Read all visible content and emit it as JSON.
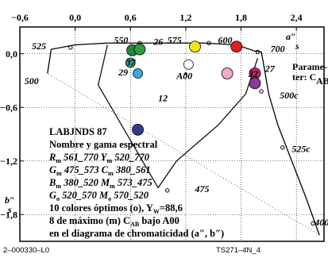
{
  "chart_data": {
    "type": "scatter",
    "xlim": [
      -0.6,
      2.7
    ],
    "ylim": [
      -2.1,
      0.3
    ],
    "x_ticks": [
      -0.6,
      0.0,
      0.6,
      1.2,
      1.8,
      2.4
    ],
    "x_tick_labels": [
      "−0,6",
      "0,0",
      "0,6",
      "1,2",
      "1,8",
      "2,4"
    ],
    "y_ticks": [
      0.0,
      -0.6,
      -1.2,
      -1.8
    ],
    "y_tick_labels": [
      "0,0",
      "−0,6",
      "−1,2",
      "−1,8"
    ],
    "x_axis_label": "a″",
    "x_axis_label_sub": "s",
    "y_axis_label": "b″",
    "y_axis_label_sub": "s",
    "grid": true,
    "param_label": "Parame-",
    "param_label_2": "ter: C",
    "param_label_sub": "AB",
    "spectral_locus": [
      [
        -0.3,
        -0.25
      ],
      [
        -0.05,
        0.07
      ],
      [
        0.45,
        0.12
      ],
      [
        1.7,
        0.1
      ],
      [
        1.85,
        0.05
      ],
      [
        1.95,
        0.0
      ],
      [
        2.0,
        -0.2
      ],
      [
        2.1,
        -0.45
      ],
      [
        2.3,
        -1.0
      ],
      [
        2.7,
        -2.05
      ],
      [
        0.7,
        0.2
      ],
      [
        -0.3,
        -0.25
      ]
    ],
    "locus_labels": [
      {
        "text": "525",
        "x": -0.47,
        "y": 0.05
      },
      {
        "text": "550",
        "x": 0.42,
        "y": 0.12
      },
      {
        "text": "575",
        "x": 1.0,
        "y": 0.12
      },
      {
        "text": "600",
        "x": 1.55,
        "y": 0.12
      },
      {
        "text": "700",
        "x": 2.12,
        "y": 0.02
      },
      {
        "text": "500",
        "x": -0.55,
        "y": -0.34
      },
      {
        "text": "500c",
        "x": 2.22,
        "y": -0.5
      },
      {
        "text": "525c",
        "x": 2.35,
        "y": -1.1
      },
      {
        "text": "475",
        "x": 1.3,
        "y": -1.55
      },
      {
        "text": "400",
        "x": 2.6,
        "y": -1.92
      }
    ],
    "colour_points": [
      {
        "x": 0.62,
        "y": 0.04,
        "color": "#1f8a3a",
        "r": 7
      },
      {
        "x": 0.7,
        "y": 0.05,
        "color": "#2e9c3b",
        "r": 7
      },
      {
        "x": 0.6,
        "y": -0.1,
        "color": "#2fa08a",
        "r": 6
      },
      {
        "x": 0.68,
        "y": -0.22,
        "color": "#3aa8e0",
        "r": 6
      },
      {
        "x": 1.3,
        "y": 0.08,
        "color": "#f2e316",
        "r": 7
      },
      {
        "x": 1.75,
        "y": 0.08,
        "color": "#e0201e",
        "r": 7
      },
      {
        "x": 1.65,
        "y": -0.22,
        "color": "#f2a9c2",
        "r": 7
      },
      {
        "x": 1.95,
        "y": -0.22,
        "color": "#c0206a",
        "r": 7
      },
      {
        "x": 1.95,
        "y": -0.33,
        "color": "#8a3a98",
        "r": 7
      },
      {
        "x": 0.68,
        "y": -0.85,
        "color": "#2e3d8f",
        "r": 7
      },
      {
        "x": 1.23,
        "y": -0.12,
        "color": "#ffffff",
        "r": 6
      }
    ],
    "point_labels": [
      {
        "text": "26",
        "x": 0.85,
        "y": 0.1
      },
      {
        "text": "37",
        "x": 0.55,
        "y": -0.13
      },
      {
        "text": "29",
        "x": 0.47,
        "y": -0.24
      },
      {
        "text": "A00",
        "x": 1.1,
        "y": -0.28
      },
      {
        "text": "12",
        "x": 0.9,
        "y": -0.53
      },
      {
        "text": "32",
        "x": 1.88,
        "y": -0.26
      },
      {
        "text": "27",
        "x": 2.06,
        "y": -0.2
      }
    ]
  },
  "info_block": {
    "line1": "LABJNDS 87",
    "line2": "Nombre y gama espectral",
    "line3a": "R",
    "line3a_sub": "m",
    "line3b": " 561_770  ",
    "line3c": "Y",
    "line3c_sub": "m",
    "line3d": " 520_770",
    "line4a": "G",
    "line4a_sub": "m",
    "line4b": " 475_573  ",
    "line4c": "C",
    "line4c_sub": "m",
    "line4d": " 380_561",
    "line5a": "B",
    "line5a_sub": "m",
    "line5b": " 380_520  ",
    "line5c": "M",
    "line5c_sub": "m",
    "line5d": " 573_475",
    "line6a": "G",
    "line6a_sub": "o",
    "line6b": " 520_570  ",
    "line6c": "M",
    "line6c_sub": "o",
    "line6d": " 570_520",
    "line7": "10 colores óptimos (o), Y",
    "line7_sub": "W",
    "line7_end": "=88,6",
    "line8": "8 de máximo (m) C",
    "line8_sub": "AB",
    "line8_end": " bajo A00",
    "line9": "en el diagrama de chromaticidad (a″, b″)"
  },
  "footer": {
    "left": "2–000330–L0",
    "right": "TS271–4N_4"
  }
}
